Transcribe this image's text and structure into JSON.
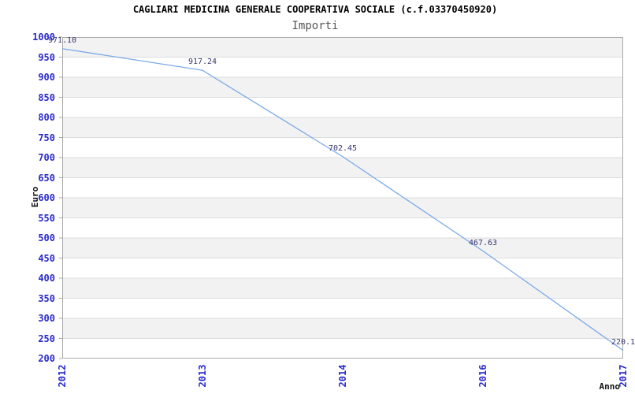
{
  "header": {
    "title": "CAGLIARI MEDICINA GENERALE COOPERATIVA SOCIALE (c.f.03370450920)",
    "subtitle": "Importi"
  },
  "colors": {
    "title": "#000000",
    "subtitle": "#555555",
    "tick_label": "#2929cc",
    "point_label": "#373773",
    "line": "#7aa9e8",
    "band": "#f2f2f2",
    "band_alt": "#ffffff",
    "gridline": "#dcdcdc",
    "border": "#a9a9a9"
  },
  "chart_data": {
    "type": "line",
    "title": "CAGLIARI MEDICINA GENERALE COOPERATIVA SOCIALE (c.f.03370450920)",
    "subtitle": "Importi",
    "xlabel": "Anno",
    "ylabel": "Euro",
    "categories": [
      "2012",
      "2013",
      "2014",
      "2016",
      "2017"
    ],
    "values": [
      971.1,
      917.24,
      702.45,
      467.63,
      220.1
    ],
    "point_labels": [
      "971.10",
      "917.24",
      "702.45",
      "467.63",
      "220.1"
    ],
    "ylim": [
      200,
      1000
    ],
    "ytick_step": 50,
    "grid": "horizontal",
    "legend": "none",
    "background_bands": "alternating gray/white per 50 units, gray at top"
  }
}
